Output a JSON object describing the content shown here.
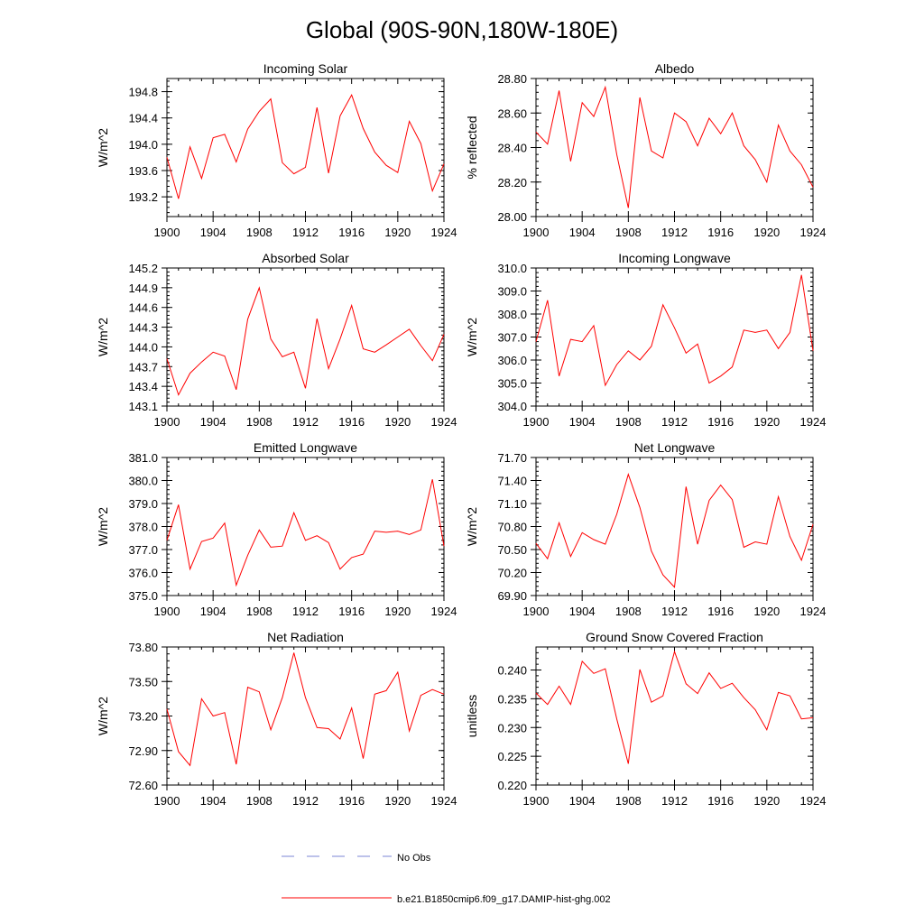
{
  "page": {
    "title": "Global (90S-90N,180W-180E)"
  },
  "colors": {
    "model_line": "#ff0000",
    "obs_line": "#7b86d6",
    "axis": "#000000"
  },
  "legend": {
    "obs_label": "No Obs",
    "model_label": "b.e21.B1850cmip6.f09_g17.DAMIP-hist-ghg.002"
  },
  "chart_data": [
    {
      "type": "line",
      "title": "Incoming Solar",
      "xlabel": "",
      "ylabel": "W/m^2",
      "xlim": [
        1900,
        1924
      ],
      "ylim": [
        192.9,
        195.0
      ],
      "xticks": [
        "1900",
        "1904",
        "1908",
        "1912",
        "1916",
        "1920",
        "1924"
      ],
      "yticks": [
        "193.2",
        "193.6",
        "194.0",
        "194.4",
        "194.8"
      ],
      "x": [
        1900,
        1901,
        1902,
        1903,
        1904,
        1905,
        1906,
        1907,
        1908,
        1909,
        1910,
        1911,
        1912,
        1913,
        1914,
        1915,
        1916,
        1917,
        1918,
        1919,
        1920,
        1921,
        1922,
        1923,
        1924
      ],
      "series": [
        {
          "name": "b.e21.B1850cmip6.f09_g17.DAMIP-hist-ghg.002",
          "values": [
            193.8,
            193.17,
            193.96,
            193.48,
            194.1,
            194.15,
            193.73,
            194.23,
            194.5,
            194.69,
            193.72,
            193.55,
            193.65,
            194.56,
            193.56,
            194.43,
            194.75,
            194.24,
            193.88,
            193.68,
            193.57,
            194.35,
            194.01,
            193.29,
            193.7
          ]
        }
      ]
    },
    {
      "type": "line",
      "title": "Albedo",
      "xlabel": "",
      "ylabel": "% reflected",
      "xlim": [
        1900,
        1924
      ],
      "ylim": [
        28.0,
        28.8
      ],
      "xticks": [
        "1900",
        "1904",
        "1908",
        "1912",
        "1916",
        "1920",
        "1924"
      ],
      "yticks": [
        "28.00",
        "28.20",
        "28.40",
        "28.60",
        "28.80"
      ],
      "x": [
        1900,
        1901,
        1902,
        1903,
        1904,
        1905,
        1906,
        1907,
        1908,
        1909,
        1910,
        1911,
        1912,
        1913,
        1914,
        1915,
        1916,
        1917,
        1918,
        1919,
        1920,
        1921,
        1922,
        1923,
        1924
      ],
      "series": [
        {
          "name": "b.e21.B1850cmip6.f09_g17.DAMIP-hist-ghg.002",
          "values": [
            28.49,
            28.42,
            28.73,
            28.32,
            28.66,
            28.58,
            28.75,
            28.36,
            28.05,
            28.69,
            28.38,
            28.34,
            28.6,
            28.55,
            28.41,
            28.57,
            28.48,
            28.6,
            28.41,
            28.33,
            28.2,
            28.53,
            28.38,
            28.3,
            28.17
          ]
        }
      ]
    },
    {
      "type": "line",
      "title": "Absorbed Solar",
      "xlabel": "",
      "ylabel": "W/m^2",
      "xlim": [
        1900,
        1924
      ],
      "ylim": [
        143.1,
        145.2
      ],
      "xticks": [
        "1900",
        "1904",
        "1908",
        "1912",
        "1916",
        "1920",
        "1924"
      ],
      "yticks": [
        "143.1",
        "143.4",
        "143.7",
        "144.0",
        "144.3",
        "144.6",
        "144.9",
        "145.2"
      ],
      "x": [
        1900,
        1901,
        1902,
        1903,
        1904,
        1905,
        1906,
        1907,
        1908,
        1909,
        1910,
        1911,
        1912,
        1913,
        1914,
        1915,
        1916,
        1917,
        1918,
        1919,
        1920,
        1921,
        1922,
        1923,
        1924
      ],
      "series": [
        {
          "name": "b.e21.B1850cmip6.f09_g17.DAMIP-hist-ghg.002",
          "values": [
            143.82,
            143.27,
            143.6,
            143.77,
            143.92,
            143.86,
            143.35,
            144.42,
            144.9,
            144.12,
            143.85,
            143.92,
            143.37,
            144.43,
            143.67,
            144.12,
            144.63,
            143.97,
            143.92,
            144.03,
            144.15,
            144.27,
            144.02,
            143.79,
            144.19
          ]
        }
      ]
    },
    {
      "type": "line",
      "title": "Incoming Longwave",
      "xlabel": "",
      "ylabel": "W/m^2",
      "xlim": [
        1900,
        1924
      ],
      "ylim": [
        304.0,
        310.0
      ],
      "xticks": [
        "1900",
        "1904",
        "1908",
        "1912",
        "1916",
        "1920",
        "1924"
      ],
      "yticks": [
        "304.0",
        "305.0",
        "306.0",
        "307.0",
        "308.0",
        "309.0",
        "310.0"
      ],
      "x": [
        1900,
        1901,
        1902,
        1903,
        1904,
        1905,
        1906,
        1907,
        1908,
        1909,
        1910,
        1911,
        1912,
        1913,
        1914,
        1915,
        1916,
        1917,
        1918,
        1919,
        1920,
        1921,
        1922,
        1923,
        1924
      ],
      "series": [
        {
          "name": "b.e21.B1850cmip6.f09_g17.DAMIP-hist-ghg.002",
          "values": [
            306.8,
            308.6,
            305.3,
            306.9,
            306.8,
            307.5,
            304.9,
            305.8,
            306.4,
            306.0,
            306.6,
            308.4,
            307.4,
            306.3,
            306.7,
            305.0,
            305.3,
            305.7,
            307.3,
            307.2,
            307.3,
            306.5,
            307.2,
            309.7,
            306.4
          ]
        }
      ]
    },
    {
      "type": "line",
      "title": "Emitted Longwave",
      "xlabel": "",
      "ylabel": "W/m^2",
      "xlim": [
        1900,
        1924
      ],
      "ylim": [
        375.0,
        381.0
      ],
      "xticks": [
        "1900",
        "1904",
        "1908",
        "1912",
        "1916",
        "1920",
        "1924"
      ],
      "yticks": [
        "375.0",
        "376.0",
        "377.0",
        "378.0",
        "379.0",
        "380.0",
        "381.0"
      ],
      "x": [
        1900,
        1901,
        1902,
        1903,
        1904,
        1905,
        1906,
        1907,
        1908,
        1909,
        1910,
        1911,
        1912,
        1913,
        1914,
        1915,
        1916,
        1917,
        1918,
        1919,
        1920,
        1921,
        1922,
        1923,
        1924
      ],
      "series": [
        {
          "name": "b.e21.B1850cmip6.f09_g17.DAMIP-hist-ghg.002",
          "values": [
            377.4,
            378.95,
            376.15,
            377.35,
            377.5,
            378.15,
            375.45,
            376.75,
            377.85,
            377.1,
            377.15,
            378.6,
            377.4,
            377.6,
            377.3,
            376.15,
            376.65,
            376.8,
            377.8,
            377.75,
            377.8,
            377.65,
            377.85,
            380.05,
            377.15
          ]
        }
      ]
    },
    {
      "type": "line",
      "title": "Net Longwave",
      "xlabel": "",
      "ylabel": "W/m^2",
      "xlim": [
        1900,
        1924
      ],
      "ylim": [
        69.9,
        71.7
      ],
      "xticks": [
        "1900",
        "1904",
        "1908",
        "1912",
        "1916",
        "1920",
        "1924"
      ],
      "yticks": [
        "69.90",
        "70.20",
        "70.50",
        "70.80",
        "71.10",
        "71.40",
        "71.70"
      ],
      "x": [
        1900,
        1901,
        1902,
        1903,
        1904,
        1905,
        1906,
        1907,
        1908,
        1909,
        1910,
        1911,
        1912,
        1913,
        1914,
        1915,
        1916,
        1917,
        1918,
        1919,
        1920,
        1921,
        1922,
        1923,
        1924
      ],
      "series": [
        {
          "name": "b.e21.B1850cmip6.f09_g17.DAMIP-hist-ghg.002",
          "values": [
            70.58,
            70.38,
            70.85,
            70.41,
            70.72,
            70.63,
            70.57,
            70.96,
            71.48,
            71.05,
            70.48,
            70.17,
            70.01,
            71.32,
            70.57,
            71.14,
            71.34,
            71.15,
            70.53,
            70.6,
            70.57,
            71.19,
            70.67,
            70.36,
            70.83
          ]
        }
      ]
    },
    {
      "type": "line",
      "title": "Net Radiation",
      "xlabel": "",
      "ylabel": "W/m^2",
      "xlim": [
        1900,
        1924
      ],
      "ylim": [
        72.6,
        73.8
      ],
      "xticks": [
        "1900",
        "1904",
        "1908",
        "1912",
        "1916",
        "1920",
        "1924"
      ],
      "yticks": [
        "72.60",
        "72.90",
        "73.20",
        "73.50",
        "73.80"
      ],
      "x": [
        1900,
        1901,
        1902,
        1903,
        1904,
        1905,
        1906,
        1907,
        1908,
        1909,
        1910,
        1911,
        1912,
        1913,
        1914,
        1915,
        1916,
        1917,
        1918,
        1919,
        1920,
        1921,
        1922,
        1923,
        1924
      ],
      "series": [
        {
          "name": "b.e21.B1850cmip6.f09_g17.DAMIP-hist-ghg.002",
          "values": [
            73.26,
            72.89,
            72.77,
            73.35,
            73.2,
            73.23,
            72.78,
            73.45,
            73.41,
            73.08,
            73.36,
            73.75,
            73.36,
            73.1,
            73.09,
            73.0,
            73.27,
            72.83,
            73.39,
            73.42,
            73.58,
            73.07,
            73.38,
            73.43,
            73.39
          ]
        }
      ]
    },
    {
      "type": "line",
      "title": "Ground Snow Covered Fraction",
      "xlabel": "",
      "ylabel": "unitless",
      "xlim": [
        1900,
        1924
      ],
      "ylim": [
        0.22,
        0.244
      ],
      "xticks": [
        "1900",
        "1904",
        "1908",
        "1912",
        "1916",
        "1920",
        "1924"
      ],
      "yticks": [
        "0.220",
        "0.225",
        "0.230",
        "0.235",
        "0.240"
      ],
      "x": [
        1900,
        1901,
        1902,
        1903,
        1904,
        1905,
        1906,
        1907,
        1908,
        1909,
        1910,
        1911,
        1912,
        1913,
        1914,
        1915,
        1916,
        1917,
        1918,
        1919,
        1920,
        1921,
        1922,
        1923,
        1924
      ],
      "series": [
        {
          "name": "b.e21.B1850cmip6.f09_g17.DAMIP-hist-ghg.002",
          "values": [
            0.236,
            0.234,
            0.2372,
            0.234,
            0.2415,
            0.2394,
            0.2402,
            0.2315,
            0.2237,
            0.2401,
            0.2344,
            0.2355,
            0.2432,
            0.2376,
            0.2359,
            0.2395,
            0.2368,
            0.2377,
            0.2352,
            0.2331,
            0.2296,
            0.2361,
            0.2355,
            0.2315,
            0.2317
          ]
        }
      ]
    }
  ]
}
